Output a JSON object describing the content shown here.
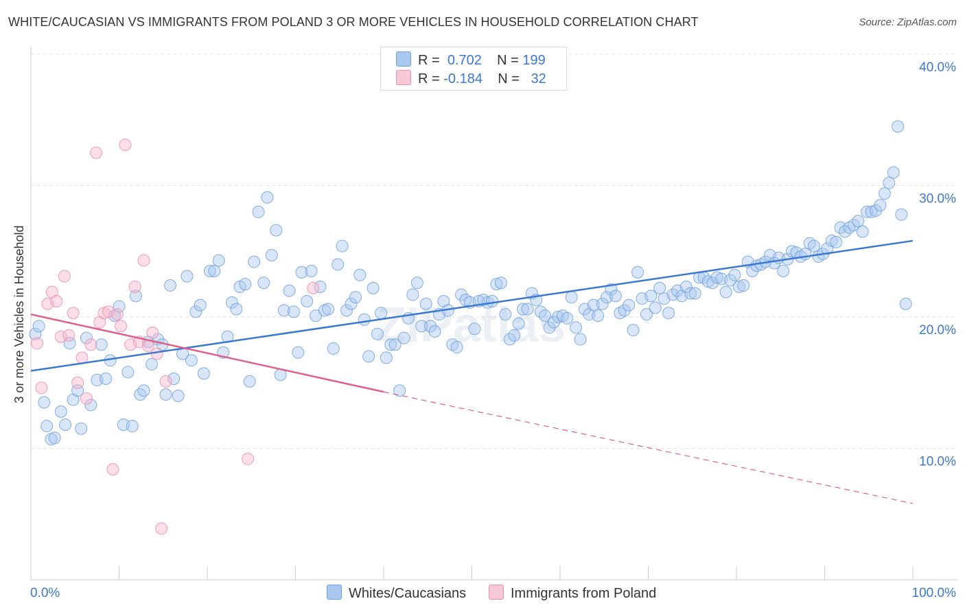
{
  "title": "WHITE/CAUCASIAN VS IMMIGRANTS FROM POLAND 3 OR MORE VEHICLES IN HOUSEHOLD CORRELATION CHART",
  "source": "Source: ZipAtlas.com",
  "watermark": "ZIPatlas",
  "legend_stats": [
    {
      "r_label": "R =",
      "r_value": "0.702",
      "n_label": "N =",
      "n_value": "199",
      "color": "#a9c8f0"
    },
    {
      "r_label": "R =",
      "r_value": "-0.184",
      "n_label": "N =",
      "n_value": "32",
      "color": "#f7b6c9"
    }
  ],
  "chart_data": {
    "type": "scatter",
    "title": "WHITE/CAUCASIAN VS IMMIGRANTS FROM POLAND 3 OR MORE VEHICLES IN HOUSEHOLD CORRELATION CHART",
    "xlabel": "",
    "ylabel": "3 or more Vehicles in Household",
    "xlim": [
      0,
      100
    ],
    "ylim": [
      0,
      40
    ],
    "x_tick_labels": [
      "0.0%",
      "100.0%"
    ],
    "y_ticks": [
      10,
      20,
      30,
      40
    ],
    "y_tick_labels": [
      "10.0%",
      "20.0%",
      "30.0%",
      "40.0%"
    ],
    "grid": true,
    "legend": "bottom",
    "series": [
      {
        "name": "Whites/Caucasians",
        "color": "#a9c8f0",
        "stroke": "#6fa0e0",
        "trend": {
          "x0": 0,
          "y0": 15.9,
          "x1": 100,
          "y1": 25.8,
          "color": "#3a78d1"
        },
        "points": [
          [
            0.5,
            18.7
          ],
          [
            0.9,
            19.3
          ],
          [
            1.5,
            13.5
          ],
          [
            1.8,
            11.7
          ],
          [
            2.3,
            10.7
          ],
          [
            2.7,
            10.8
          ],
          [
            3.4,
            12.8
          ],
          [
            3.9,
            11.8
          ],
          [
            4.4,
            18.0
          ],
          [
            4.8,
            13.7
          ],
          [
            5.3,
            14.4
          ],
          [
            5.7,
            11.5
          ],
          [
            6.3,
            18.4
          ],
          [
            6.8,
            13.3
          ],
          [
            7.5,
            15.2
          ],
          [
            8.0,
            17.9
          ],
          [
            8.5,
            15.3
          ],
          [
            9.0,
            16.7
          ],
          [
            9.5,
            20.1
          ],
          [
            10.0,
            20.8
          ],
          [
            10.5,
            11.8
          ],
          [
            11.0,
            15.8
          ],
          [
            11.5,
            11.7
          ],
          [
            11.9,
            21.6
          ],
          [
            12.4,
            14.1
          ],
          [
            12.8,
            14.4
          ],
          [
            13.3,
            18.1
          ],
          [
            13.7,
            16.4
          ],
          [
            14.4,
            18.3
          ],
          [
            14.9,
            17.9
          ],
          [
            15.3,
            14.1
          ],
          [
            15.8,
            22.4
          ],
          [
            16.2,
            15.3
          ],
          [
            16.7,
            14.0
          ],
          [
            17.2,
            17.2
          ],
          [
            17.7,
            23.1
          ],
          [
            18.2,
            16.7
          ],
          [
            18.7,
            20.4
          ],
          [
            19.2,
            20.9
          ],
          [
            19.6,
            15.7
          ],
          [
            20.3,
            23.5
          ],
          [
            20.8,
            23.5
          ],
          [
            21.3,
            24.3
          ],
          [
            21.8,
            17.3
          ],
          [
            22.3,
            18.5
          ],
          [
            22.8,
            21.1
          ],
          [
            23.3,
            20.6
          ],
          [
            23.7,
            22.3
          ],
          [
            24.3,
            22.5
          ],
          [
            24.8,
            15.1
          ],
          [
            25.3,
            24.2
          ],
          [
            25.8,
            28.0
          ],
          [
            26.4,
            22.6
          ],
          [
            26.8,
            29.1
          ],
          [
            27.3,
            24.7
          ],
          [
            27.8,
            26.6
          ],
          [
            28.3,
            15.6
          ],
          [
            28.7,
            20.5
          ],
          [
            29.3,
            22.0
          ],
          [
            29.8,
            20.4
          ],
          [
            30.3,
            17.3
          ],
          [
            30.7,
            23.4
          ],
          [
            31.3,
            21.2
          ],
          [
            31.8,
            23.5
          ],
          [
            32.3,
            20.1
          ],
          [
            32.8,
            22.3
          ],
          [
            33.3,
            20.5
          ],
          [
            33.7,
            20.6
          ],
          [
            34.3,
            17.6
          ],
          [
            34.8,
            24.0
          ],
          [
            35.3,
            25.4
          ],
          [
            35.8,
            20.5
          ],
          [
            36.3,
            21.0
          ],
          [
            36.8,
            21.5
          ],
          [
            37.3,
            23.2
          ],
          [
            37.8,
            19.8
          ],
          [
            38.3,
            17.0
          ],
          [
            38.8,
            22.2
          ],
          [
            39.3,
            18.7
          ],
          [
            39.7,
            20.3
          ],
          [
            40.3,
            16.9
          ],
          [
            40.8,
            17.9
          ],
          [
            41.3,
            17.9
          ],
          [
            41.8,
            14.4
          ],
          [
            42.3,
            18.4
          ],
          [
            42.8,
            19.9
          ],
          [
            43.3,
            21.7
          ],
          [
            43.8,
            22.6
          ],
          [
            44.3,
            19.3
          ],
          [
            44.8,
            21.0
          ],
          [
            45.3,
            19.3
          ],
          [
            45.8,
            18.9
          ],
          [
            46.3,
            20.2
          ],
          [
            46.8,
            21.2
          ],
          [
            47.3,
            20.5
          ],
          [
            47.8,
            17.9
          ],
          [
            48.3,
            17.7
          ],
          [
            48.8,
            21.7
          ],
          [
            49.3,
            21.3
          ],
          [
            49.8,
            21.1
          ],
          [
            50.3,
            19.1
          ],
          [
            50.8,
            21.2
          ],
          [
            51.3,
            21.3
          ],
          [
            51.8,
            21.1
          ],
          [
            52.3,
            21.2
          ],
          [
            52.8,
            22.5
          ],
          [
            53.3,
            22.6
          ],
          [
            53.8,
            20.2
          ],
          [
            54.3,
            18.3
          ],
          [
            54.8,
            18.6
          ],
          [
            55.3,
            19.5
          ],
          [
            55.8,
            20.6
          ],
          [
            56.3,
            20.6
          ],
          [
            56.8,
            21.8
          ],
          [
            57.3,
            21.3
          ],
          [
            57.8,
            20.4
          ],
          [
            58.3,
            20.1
          ],
          [
            58.8,
            19.2
          ],
          [
            59.3,
            19.6
          ],
          [
            59.8,
            20.0
          ],
          [
            60.3,
            20.1
          ],
          [
            60.8,
            19.9
          ],
          [
            61.3,
            21.5
          ],
          [
            61.8,
            19.2
          ],
          [
            62.3,
            18.3
          ],
          [
            62.8,
            20.6
          ],
          [
            63.3,
            20.2
          ],
          [
            63.8,
            20.9
          ],
          [
            64.3,
            20.1
          ],
          [
            64.8,
            21.0
          ],
          [
            65.3,
            21.5
          ],
          [
            65.8,
            22.1
          ],
          [
            66.3,
            21.6
          ],
          [
            66.8,
            20.3
          ],
          [
            67.3,
            20.5
          ],
          [
            67.8,
            20.9
          ],
          [
            68.3,
            19.0
          ],
          [
            68.8,
            23.4
          ],
          [
            69.3,
            21.4
          ],
          [
            69.8,
            20.2
          ],
          [
            70.3,
            21.6
          ],
          [
            70.8,
            20.7
          ],
          [
            71.3,
            22.2
          ],
          [
            71.8,
            21.4
          ],
          [
            72.3,
            20.3
          ],
          [
            72.8,
            21.7
          ],
          [
            73.3,
            22.0
          ],
          [
            73.8,
            21.6
          ],
          [
            74.3,
            22.3
          ],
          [
            74.8,
            21.8
          ],
          [
            75.3,
            21.8
          ],
          [
            75.8,
            23.0
          ],
          [
            76.3,
            23.0
          ],
          [
            76.8,
            22.7
          ],
          [
            77.3,
            22.6
          ],
          [
            77.8,
            23.0
          ],
          [
            78.3,
            22.9
          ],
          [
            78.8,
            21.9
          ],
          [
            79.3,
            22.8
          ],
          [
            79.8,
            23.2
          ],
          [
            80.3,
            22.3
          ],
          [
            80.8,
            22.4
          ],
          [
            81.3,
            24.2
          ],
          [
            81.8,
            23.5
          ],
          [
            82.3,
            23.9
          ],
          [
            82.8,
            24.0
          ],
          [
            83.3,
            24.2
          ],
          [
            83.8,
            24.7
          ],
          [
            84.3,
            24.1
          ],
          [
            84.8,
            24.5
          ],
          [
            85.3,
            23.5
          ],
          [
            85.8,
            24.4
          ],
          [
            86.3,
            25.0
          ],
          [
            86.8,
            24.9
          ],
          [
            87.3,
            24.6
          ],
          [
            87.8,
            24.8
          ],
          [
            88.3,
            25.6
          ],
          [
            88.8,
            25.4
          ],
          [
            89.3,
            24.6
          ],
          [
            89.8,
            24.8
          ],
          [
            90.3,
            25.2
          ],
          [
            90.8,
            25.8
          ],
          [
            91.3,
            25.7
          ],
          [
            91.8,
            26.8
          ],
          [
            92.3,
            26.5
          ],
          [
            92.8,
            26.8
          ],
          [
            93.3,
            27.0
          ],
          [
            93.8,
            27.3
          ],
          [
            94.3,
            26.5
          ],
          [
            94.8,
            28.0
          ],
          [
            95.3,
            28.0
          ],
          [
            95.8,
            28.1
          ],
          [
            96.3,
            28.5
          ],
          [
            96.8,
            29.4
          ],
          [
            97.3,
            30.2
          ],
          [
            97.8,
            31.0
          ],
          [
            98.3,
            34.5
          ],
          [
            98.7,
            27.8
          ],
          [
            99.2,
            21.0
          ]
        ]
      },
      {
        "name": "Immigrants from Poland",
        "color": "#f7b6c9",
        "stroke": "#ec8fad",
        "trend": {
          "x0": 0,
          "y0": 20.2,
          "x1": 40,
          "y1": 14.3,
          "dash_to_x": 100,
          "dash_to_y": 5.8,
          "color": "#e0608b"
        },
        "points": [
          [
            0.7,
            18.0
          ],
          [
            1.2,
            14.6
          ],
          [
            1.9,
            21.0
          ],
          [
            2.4,
            21.9
          ],
          [
            2.9,
            21.2
          ],
          [
            3.4,
            18.5
          ],
          [
            3.8,
            23.1
          ],
          [
            4.3,
            18.6
          ],
          [
            4.8,
            20.3
          ],
          [
            5.3,
            15.0
          ],
          [
            5.8,
            16.9
          ],
          [
            6.3,
            13.8
          ],
          [
            6.8,
            17.9
          ],
          [
            7.4,
            32.5
          ],
          [
            7.8,
            19.6
          ],
          [
            8.3,
            20.3
          ],
          [
            8.8,
            20.4
          ],
          [
            9.3,
            8.4
          ],
          [
            9.8,
            20.2
          ],
          [
            10.2,
            19.3
          ],
          [
            10.7,
            33.1
          ],
          [
            11.3,
            17.9
          ],
          [
            11.8,
            22.3
          ],
          [
            12.3,
            18.1
          ],
          [
            12.8,
            24.3
          ],
          [
            13.3,
            17.8
          ],
          [
            13.8,
            18.8
          ],
          [
            14.3,
            17.2
          ],
          [
            14.8,
            3.9
          ],
          [
            15.3,
            15.1
          ],
          [
            24.6,
            9.2
          ],
          [
            32.0,
            22.2
          ]
        ]
      }
    ]
  }
}
